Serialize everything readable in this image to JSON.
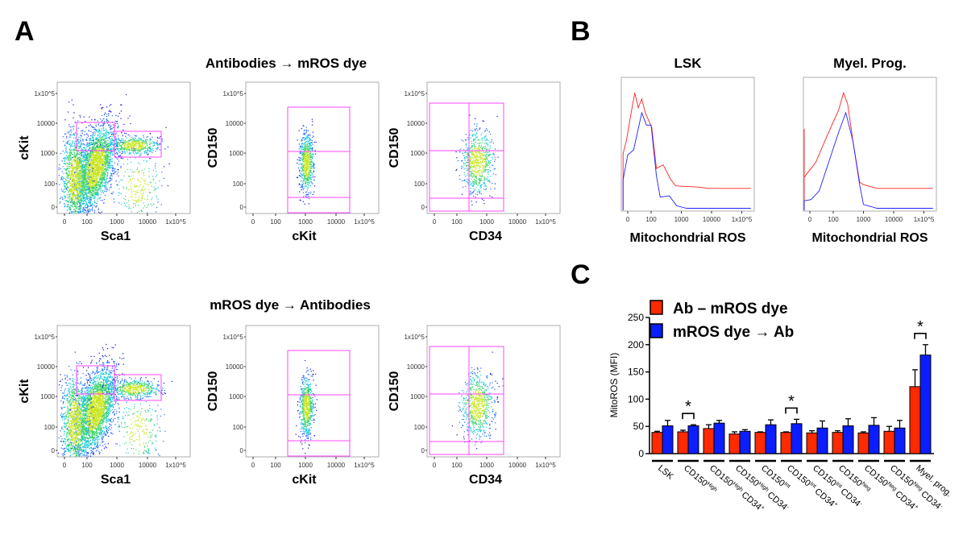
{
  "panels": {
    "a": "A",
    "b": "B",
    "c": "C"
  },
  "panel_a": {
    "row_titles": [
      "Antibodies → mROS dye",
      "mROS dye → Antibodies"
    ],
    "log_ticks": [
      "0",
      "100",
      "1000",
      "10000",
      "1x10^5"
    ],
    "gate_color": "#ff44ff",
    "plots": [
      {
        "row": 0,
        "type": "scatter-density",
        "xlabel": "Sca1",
        "ylabel": "cKit"
      },
      {
        "row": 0,
        "type": "scatter-density",
        "xlabel": "cKit",
        "ylabel": "CD150"
      },
      {
        "row": 0,
        "type": "scatter-density",
        "xlabel": "CD34",
        "ylabel": "CD150"
      },
      {
        "row": 1,
        "type": "scatter-density",
        "xlabel": "Sca1",
        "ylabel": "cKit"
      },
      {
        "row": 1,
        "type": "scatter-density",
        "xlabel": "cKit",
        "ylabel": "CD150"
      },
      {
        "row": 1,
        "type": "scatter-density",
        "xlabel": "CD34",
        "ylabel": "CD150"
      }
    ]
  },
  "panel_b": {
    "xticks": [
      "0",
      "100",
      "1000",
      "10000",
      "1x10^5"
    ],
    "histograms": [
      {
        "title": "LSK",
        "xlabel": "Mitochondrial ROS",
        "series": [
          {
            "color": "#ff2020",
            "points": [
              [
                -20,
                45
              ],
              [
                -5,
                56
              ],
              [
                10,
                73
              ],
              [
                30,
                94
              ],
              [
                45,
                82
              ],
              [
                60,
                89
              ],
              [
                75,
                78
              ],
              [
                105,
                66
              ],
              [
                150,
                33
              ],
              [
                250,
                36
              ],
              [
                450,
                24
              ],
              [
                650,
                19
              ],
              [
                4000,
                18
              ],
              [
                8000,
                17
              ],
              [
                200000,
                17
              ]
            ]
          },
          {
            "color": "#2020ff",
            "points": [
              [
                -20,
                24
              ],
              [
                0,
                44
              ],
              [
                25,
                48
              ],
              [
                60,
                78
              ],
              [
                80,
                68
              ],
              [
                100,
                68
              ],
              [
                150,
                27
              ],
              [
                200,
                10
              ],
              [
                400,
                11
              ],
              [
                700,
                3
              ],
              [
                1500,
                1
              ],
              [
                200000,
                1
              ]
            ]
          }
        ]
      },
      {
        "title": "Myel. Prog.",
        "xlabel": "Mitochondrial ROS",
        "series": [
          {
            "color": "#ff2020",
            "points": [
              [
                -28,
                65
              ],
              [
                -24,
                26
              ],
              [
                -8,
                30
              ],
              [
                25,
                38
              ],
              [
                75,
                60
              ],
              [
                150,
                80
              ],
              [
                220,
                94
              ],
              [
                300,
                85
              ],
              [
                450,
                55
              ],
              [
                750,
                22
              ],
              [
                1000,
                20
              ],
              [
                2800,
                17
              ],
              [
                200000,
                17
              ]
            ]
          },
          {
            "color": "#2020ff",
            "points": [
              [
                -28,
                7
              ],
              [
                5,
                8
              ],
              [
                40,
                15
              ],
              [
                75,
                35
              ],
              [
                150,
                62
              ],
              [
                260,
                78
              ],
              [
                450,
                55
              ],
              [
                750,
                20
              ],
              [
                1000,
                4
              ],
              [
                2800,
                1
              ],
              [
                200000,
                1
              ]
            ]
          }
        ]
      }
    ]
  },
  "chart_data": {
    "type": "bar",
    "ylabel": "MitoROS (MFI)",
    "ylim": [
      0,
      250
    ],
    "yticks": [
      0,
      50,
      100,
      150,
      200,
      250
    ],
    "legend_position": "top-left",
    "categories": [
      {
        "main": "LSK",
        "sup": "",
        "tail": "",
        "sup2": ""
      },
      {
        "main": "CD150",
        "sup": "High",
        "tail": "",
        "sup2": ""
      },
      {
        "main": "CD150",
        "sup": "High",
        "tail": " CD34",
        "sup2": "+"
      },
      {
        "main": "CD150",
        "sup": "High",
        "tail": " CD34",
        "sup2": "-"
      },
      {
        "main": "CD150",
        "sup": "Int",
        "tail": "",
        "sup2": ""
      },
      {
        "main": "CD150",
        "sup": "Int",
        "tail": " CD34",
        "sup2": "+"
      },
      {
        "main": "CD150",
        "sup": "Int",
        "tail": " CD34",
        "sup2": "-"
      },
      {
        "main": "CD150",
        "sup": "Neg",
        "tail": "",
        "sup2": ""
      },
      {
        "main": "CD150",
        "sup": "Neg",
        "tail": " CD34",
        "sup2": "+"
      },
      {
        "main": "CD150",
        "sup": "Neg",
        "tail": " CD34",
        "sup2": "-"
      },
      {
        "main": "Myel. prog.",
        "sup": "",
        "tail": "",
        "sup2": ""
      }
    ],
    "series": [
      {
        "name": "Ab – mROS dye",
        "color": "#ff2a00",
        "values": [
          39,
          40,
          46,
          36,
          39,
          39,
          38,
          39,
          38,
          41,
          123
        ],
        "errors": [
          2,
          3,
          7,
          4,
          1,
          1,
          4,
          3,
          2,
          9,
          31
        ]
      },
      {
        "name": "mROS dye → Ab",
        "color": "#0a1eff",
        "values": [
          51,
          51,
          56,
          41,
          53,
          55,
          47,
          51,
          52,
          47,
          181
        ],
        "errors": [
          10,
          2,
          5,
          3,
          9,
          8,
          13,
          13,
          14,
          14,
          19
        ]
      }
    ],
    "significance": [
      {
        "category_index": 1,
        "label": "*"
      },
      {
        "category_index": 5,
        "label": "*"
      },
      {
        "category_index": 10,
        "label": "*"
      }
    ]
  }
}
